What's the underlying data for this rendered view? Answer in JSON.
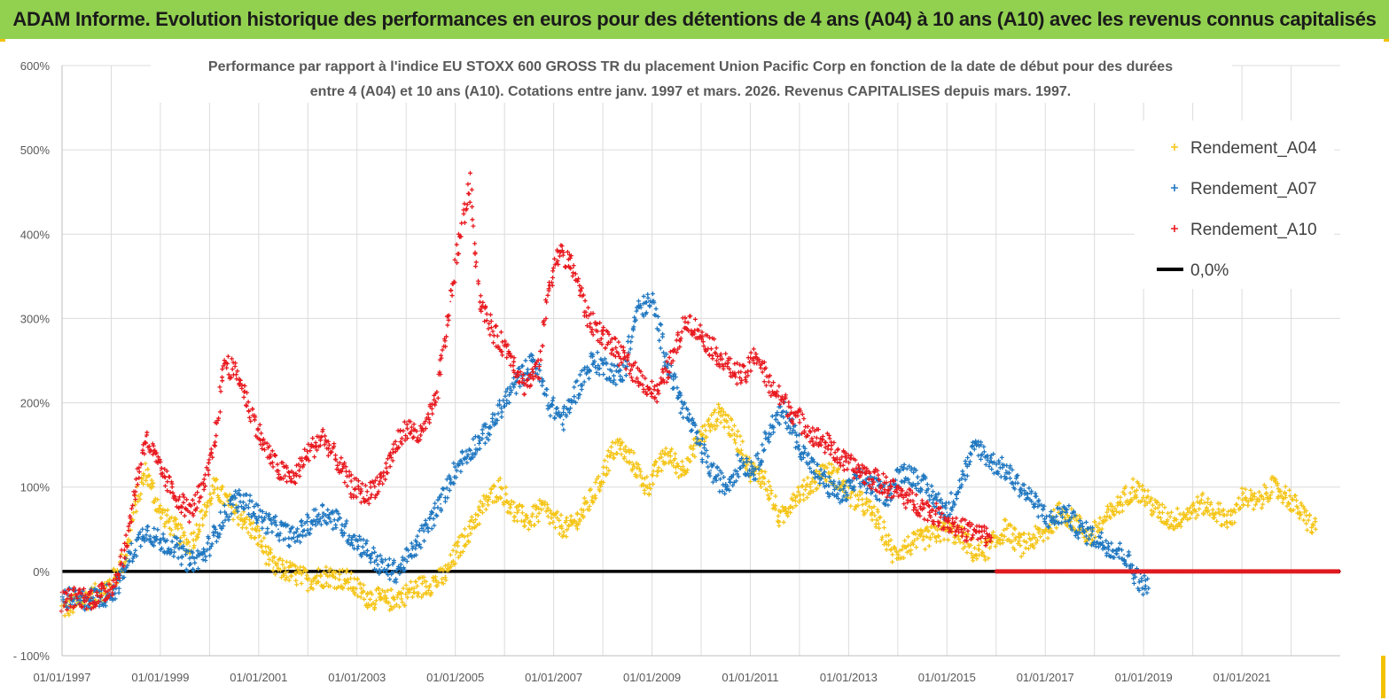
{
  "banner": {
    "title": "ADAM Informe. Evolution historique des performances en euros pour des détentions de 4 ans (A04) à 10 ans (A10) avec les revenus connus capitalisés"
  },
  "colors": {
    "banner_bg": "#92d050",
    "a04": "#f5c518",
    "a07": "#1f77c0",
    "a10": "#e8191f",
    "zero": "#000000",
    "grid": "#dcdcdc"
  },
  "chart_data": {
    "type": "scatter",
    "title_line1": "Performance par rapport à l'indice EU STOXX 600 GROSS TR  du placement Union Pacific Corp en fonction de la date de début pour des durées",
    "title_line2": "entre 4 (A04) et 10 ans (A10). Cotations entre janv. 1997 et mars. 2026. Revenus CAPITALISES depuis mars. 1997.",
    "xlabel": "",
    "ylabel": "",
    "xlim": [
      1997.0,
      2023.0
    ],
    "ylim": [
      -100,
      600
    ],
    "y_ticks": [
      {
        "value": 600,
        "label": "600%"
      },
      {
        "value": 500,
        "label": "500%"
      },
      {
        "value": 400,
        "label": "400%"
      },
      {
        "value": 300,
        "label": "300%"
      },
      {
        "value": 200,
        "label": "200%"
      },
      {
        "value": 100,
        "label": "100%"
      },
      {
        "value": 0,
        "label": "0%"
      },
      {
        "value": -100,
        "label": "- 100%"
      }
    ],
    "x_ticks": [
      {
        "value": 1997,
        "label": "01/01/1997"
      },
      {
        "value": 1999,
        "label": "01/01/1999"
      },
      {
        "value": 2001,
        "label": "01/01/2001"
      },
      {
        "value": 2003,
        "label": "01/01/2003"
      },
      {
        "value": 2005,
        "label": "01/01/2005"
      },
      {
        "value": 2007,
        "label": "01/01/2007"
      },
      {
        "value": 2009,
        "label": "01/01/2009"
      },
      {
        "value": 2011,
        "label": "01/01/2011"
      },
      {
        "value": 2013,
        "label": "01/01/2013"
      },
      {
        "value": 2015,
        "label": "01/01/2015"
      },
      {
        "value": 2017,
        "label": "01/01/2017"
      },
      {
        "value": 2019,
        "label": "01/01/2019"
      },
      {
        "value": 2021,
        "label": "01/01/2021"
      }
    ],
    "grid": true,
    "legend_position": "top-right",
    "series": [
      {
        "name": "Rendement_A04",
        "marker": "+",
        "x": [
          1997.0,
          1997.3,
          1997.6,
          1997.9,
          1998.1,
          1998.3,
          1998.5,
          1998.7,
          1999.0,
          1999.3,
          1999.6,
          1999.9,
          2000.1,
          2000.4,
          2000.7,
          2001.0,
          2001.3,
          2001.6,
          2002.0,
          2002.4,
          2002.8,
          2003.2,
          2003.6,
          2003.9,
          2004.2,
          2004.5,
          2004.8,
          2005.0,
          2005.3,
          2005.6,
          2005.9,
          2006.2,
          2006.5,
          2006.8,
          2007.0,
          2007.3,
          2007.6,
          2007.9,
          2008.1,
          2008.3,
          2008.6,
          2008.9,
          2009.1,
          2009.3,
          2009.6,
          2010.0,
          2010.4,
          2010.8,
          2011.0,
          2011.3,
          2011.6,
          2011.9,
          2012.2,
          2012.5,
          2012.8,
          2013.0,
          2013.3,
          2013.6,
          2013.9,
          2014.2,
          2014.6,
          2015.0,
          2015.3,
          2015.6,
          2015.9,
          2016.2,
          2016.5,
          2016.8,
          2017.0,
          2017.3,
          2017.6,
          2017.9,
          2018.2,
          2018.5,
          2018.8,
          2019.0,
          2019.3,
          2019.6,
          2019.9,
          2020.2,
          2020.5,
          2020.8,
          2021.0,
          2021.3,
          2021.6,
          2021.9,
          2022.2,
          2022.5
        ],
        "y": [
          -45,
          -38,
          -30,
          -20,
          -5,
          20,
          80,
          120,
          70,
          50,
          30,
          70,
          100,
          80,
          60,
          40,
          5,
          0,
          -10,
          -5,
          -10,
          -30,
          -35,
          -30,
          -20,
          -15,
          -5,
          20,
          50,
          80,
          100,
          70,
          60,
          75,
          60,
          50,
          70,
          100,
          130,
          150,
          130,
          100,
          120,
          140,
          120,
          160,
          190,
          150,
          120,
          110,
          60,
          90,
          100,
          120,
          110,
          90,
          80,
          60,
          20,
          30,
          40,
          50,
          40,
          20,
          30,
          50,
          30,
          40,
          45,
          70,
          60,
          40,
          60,
          80,
          100,
          90,
          70,
          60,
          70,
          80,
          70,
          60,
          90,
          80,
          100,
          90,
          70,
          50
        ]
      },
      {
        "name": "Rendement_A07",
        "marker": "+",
        "x": [
          1997.0,
          1997.3,
          1997.6,
          1997.9,
          1998.1,
          1998.4,
          1998.7,
          1999.0,
          1999.3,
          1999.6,
          1999.9,
          2000.2,
          2000.5,
          2000.8,
          2001.1,
          2001.4,
          2001.7,
          2002.0,
          2002.3,
          2002.6,
          2002.9,
          2003.2,
          2003.5,
          2003.8,
          2004.1,
          2004.4,
          2004.7,
          2004.9,
          2005.1,
          2005.4,
          2005.7,
          2006.0,
          2006.3,
          2006.6,
          2006.9,
          2007.2,
          2007.5,
          2007.8,
          2008.1,
          2008.4,
          2008.7,
          2009.0,
          2009.3,
          2009.6,
          2009.9,
          2010.2,
          2010.5,
          2010.8,
          2011.1,
          2011.4,
          2011.7,
          2012.0,
          2012.3,
          2012.6,
          2012.9,
          2013.2,
          2013.5,
          2013.8,
          2014.1,
          2014.4,
          2014.7,
          2015.0,
          2015.3,
          2015.6,
          2015.9,
          2016.2,
          2016.5,
          2016.8,
          2017.1,
          2017.4,
          2017.7,
          2018.0,
          2018.3,
          2018.6,
          2018.9,
          2019.1
        ],
        "y": [
          -30,
          -35,
          -32,
          -28,
          -20,
          20,
          50,
          35,
          30,
          10,
          20,
          55,
          85,
          80,
          60,
          50,
          40,
          55,
          70,
          60,
          40,
          25,
          5,
          0,
          20,
          50,
          80,
          110,
          130,
          150,
          170,
          200,
          230,
          250,
          200,
          180,
          220,
          250,
          240,
          230,
          310,
          320,
          250,
          200,
          160,
          120,
          100,
          130,
          120,
          170,
          190,
          150,
          120,
          100,
          90,
          110,
          100,
          90,
          120,
          110,
          90,
          70,
          110,
          150,
          130,
          120,
          100,
          80,
          60,
          70,
          50,
          40,
          30,
          20,
          -10,
          -20
        ]
      },
      {
        "name": "Rendement_A10",
        "marker": "+",
        "x": [
          1997.0,
          1997.3,
          1997.6,
          1997.9,
          1998.1,
          1998.3,
          1998.5,
          1998.7,
          1999.0,
          1999.3,
          1999.6,
          1999.9,
          2000.1,
          2000.3,
          2000.6,
          2000.9,
          2001.1,
          2001.4,
          2001.7,
          2002.0,
          2002.3,
          2002.6,
          2002.9,
          2003.2,
          2003.5,
          2003.8,
          2004.0,
          2004.3,
          2004.6,
          2004.9,
          2005.1,
          2005.3,
          2005.5,
          2005.8,
          2006.1,
          2006.4,
          2006.7,
          2006.9,
          2007.1,
          2007.4,
          2007.7,
          2008.0,
          2008.3,
          2008.6,
          2008.9,
          2009.1,
          2009.4,
          2009.7,
          2010.0,
          2010.3,
          2010.6,
          2010.9,
          2011.1,
          2011.4,
          2011.7,
          2012.0,
          2012.3,
          2012.6,
          2012.9,
          2013.2,
          2013.5,
          2013.8,
          2014.1,
          2014.4,
          2014.7,
          2015.0,
          2015.3,
          2015.6,
          2015.9
        ],
        "y": [
          -35,
          -30,
          -32,
          -25,
          -10,
          30,
          100,
          160,
          120,
          90,
          70,
          100,
          150,
          250,
          230,
          180,
          150,
          120,
          110,
          140,
          160,
          130,
          100,
          90,
          110,
          150,
          170,
          160,
          200,
          320,
          400,
          460,
          320,
          280,
          260,
          220,
          240,
          340,
          380,
          360,
          300,
          280,
          260,
          240,
          220,
          210,
          250,
          300,
          280,
          260,
          240,
          230,
          260,
          220,
          200,
          180,
          160,
          150,
          130,
          120,
          110,
          100,
          90,
          80,
          70,
          60,
          50,
          45,
          40
        ]
      },
      {
        "name": "0,0%",
        "marker": "line",
        "x": [
          1997.0,
          2023.0
        ],
        "y": [
          0,
          0
        ]
      }
    ]
  }
}
